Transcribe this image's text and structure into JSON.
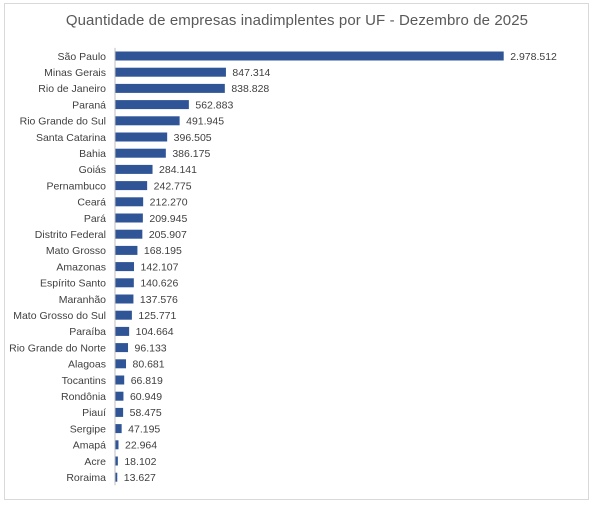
{
  "colors": {
    "bar": "#2f5597",
    "axis": "#bfbfbf",
    "text": "#404040",
    "title": "#595959",
    "border": "#d9d9d9"
  },
  "chart_data": {
    "type": "bar",
    "orientation": "horizontal",
    "title": "Quantidade de empresas inadimplentes por UF - Dezembro de 2025",
    "xlabel": "",
    "ylabel": "",
    "grid": false,
    "legend": "none",
    "xlim": [
      0,
      3000000
    ],
    "categories": [
      "São Paulo",
      "Minas Gerais",
      "Rio de Janeiro",
      "Paraná",
      "Rio Grande do Sul",
      "Santa Catarina",
      "Bahia",
      "Goiás",
      "Pernambuco",
      "Ceará",
      "Pará",
      "Distrito Federal",
      "Mato Grosso",
      "Amazonas",
      "Espírito Santo",
      "Maranhão",
      "Mato Grosso do Sul",
      "Paraíba",
      "Rio Grande do Norte",
      "Alagoas",
      "Tocantins",
      "Rondônia",
      "Piauí",
      "Sergipe",
      "Amapá",
      "Acre",
      "Roraima"
    ],
    "values": [
      2978512,
      847314,
      838828,
      562883,
      491945,
      396505,
      386175,
      284141,
      242775,
      212270,
      209945,
      205907,
      168195,
      142107,
      140626,
      137576,
      125771,
      104664,
      96133,
      80681,
      66819,
      60949,
      58475,
      47195,
      22964,
      18102,
      13627
    ],
    "data_labels": [
      "2.978.512",
      "847.314",
      "838.828",
      "562.883",
      "491.945",
      "396.505",
      "386.175",
      "284.141",
      "242.775",
      "212.270",
      "209.945",
      "205.907",
      "168.195",
      "142.107",
      "140.626",
      "137.576",
      "125.771",
      "104.664",
      "96.133",
      "80.681",
      "66.819",
      "60.949",
      "58.475",
      "47.195",
      "22.964",
      "18.102",
      "13.627"
    ]
  }
}
